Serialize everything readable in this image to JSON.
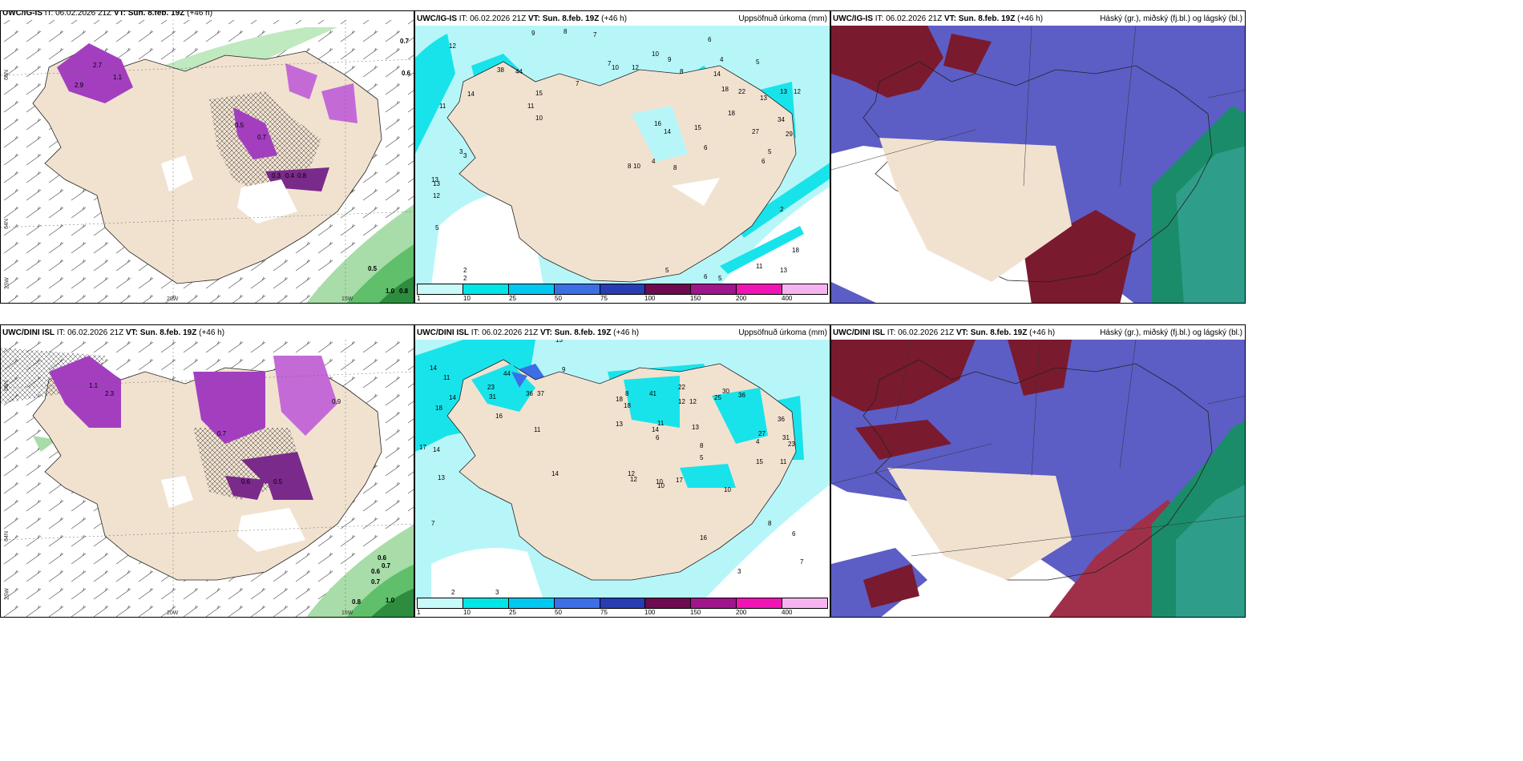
{
  "panels": {
    "top_left": {
      "model": "UWC/IG-IS",
      "it": "IT: 06.02.2026 21Z",
      "vt": "VT: Sun. 8.feb. 19Z",
      "lead": "(+46 h)"
    },
    "top_mid": {
      "model": "UWC/IG-IS",
      "it": "IT: 06.02.2026 21Z",
      "vt": "VT: Sun. 8.feb. 19Z",
      "lead": "(+46 h)",
      "right": "Uppsöfnuð úrkoma (mm)"
    },
    "top_right": {
      "model": "UWC/IG-IS",
      "it": "IT: 06.02.2026 21Z",
      "vt": "VT: Sun. 8.feb. 19Z",
      "lead": "(+46 h)",
      "right": "Háský (gr.), miðský (fj.bl.) og lágský (bl.)"
    },
    "bot_left": {
      "model": "UWC/DINI ISL",
      "it": "IT: 06.02.2026 21Z",
      "vt": "VT: Sun. 8.feb. 19Z",
      "lead": "(+46 h)"
    },
    "bot_mid": {
      "model": "UWC/DINI ISL",
      "it": "IT: 06.02.2026 21Z",
      "vt": "VT: Sun. 8.feb. 19Z",
      "lead": "(+46 h)",
      "right": "Uppsöfnuð úrkoma (mm)"
    },
    "bot_right": {
      "model": "UWC/DINI ISL",
      "it": "IT: 06.02.2026 21Z",
      "vt": "VT: Sun. 8.feb. 19Z",
      "lead": "(+46 h)",
      "right": "Háský (gr.), miðský (fj.bl.) og lágský (bl.)"
    }
  },
  "colorbar": {
    "labels": [
      "1",
      "10",
      "25",
      "50",
      "75",
      "100",
      "150",
      "200",
      "400"
    ],
    "colors": [
      "#c8fafa",
      "#00e6e6",
      "#00c8f0",
      "#3c6ee6",
      "#283cb4",
      "#6e0a50",
      "#a0148c",
      "#f014b4",
      "#f5b4f0"
    ]
  },
  "axes": {
    "lon_left": "20W",
    "lon_right": "15W",
    "lat_top": "66N",
    "lat_mid": "64N",
    "lat_bot": "25W"
  },
  "colors": {
    "land": "#f1e2d0",
    "precip_light": "#b7f6f8",
    "precip_cyan": "#19e3ea",
    "snow_purple": "#a33fbf",
    "rain_green": "#5fbf6a",
    "cloud_high": "#7a1a2e",
    "cloud_mid": "#5d5dc6",
    "cloud_low": "#1b8c6a"
  },
  "map_values": {
    "top_mid": [
      "9",
      "8",
      "7",
      "12",
      "14",
      "11",
      "38",
      "44",
      "15",
      "13",
      "7",
      "10",
      "12",
      "10",
      "9",
      "6",
      "8",
      "4",
      "5",
      "3",
      "14",
      "18",
      "22",
      "13",
      "12",
      "18",
      "27",
      "34",
      "29",
      "13",
      "15",
      "16",
      "14",
      "11",
      "10",
      "8",
      "6",
      "3",
      "2",
      "13",
      "12",
      "5",
      "2",
      "4",
      "7",
      "10",
      "8",
      "5",
      "6",
      "2",
      "18",
      "11",
      "13",
      "12",
      "5",
      "6",
      "5"
    ],
    "bot_mid": [
      "13",
      "14",
      "11",
      "14",
      "18",
      "23",
      "31",
      "44",
      "36",
      "37",
      "16",
      "11",
      "17",
      "14",
      "13",
      "9",
      "7",
      "8",
      "11",
      "41",
      "22",
      "12",
      "25",
      "30",
      "36",
      "12",
      "18",
      "13",
      "6",
      "5",
      "27",
      "36",
      "31",
      "23",
      "18",
      "14",
      "13",
      "12",
      "10",
      "8",
      "4",
      "17",
      "15",
      "11",
      "10",
      "6",
      "8",
      "7",
      "3",
      "2",
      "16",
      "14",
      "10",
      "12",
      "3"
    ],
    "top_left": [
      "0.7",
      "0.6",
      "0.5",
      "1.0",
      "0.8",
      "2.9",
      "1.1",
      "2.7",
      "0.3",
      "0.8",
      "0.7",
      "0.5",
      "0.4"
    ],
    "bot_left": [
      "0.6",
      "0.7",
      "0.6",
      "0.7",
      "0.8",
      "1.0",
      "0.9",
      "0.7",
      "0.6",
      "0.5",
      "2.3",
      "1.1"
    ]
  }
}
